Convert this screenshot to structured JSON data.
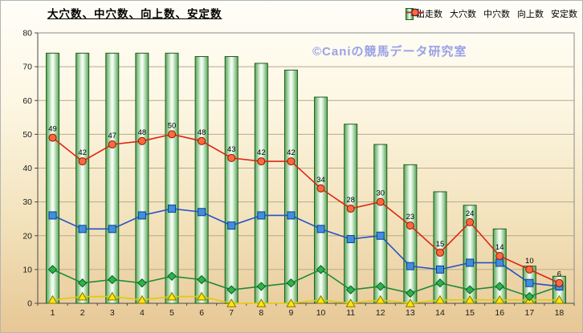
{
  "watermark": "©Caniの競馬データ研究室",
  "chart_data": {
    "type": "combo",
    "title": "大穴数、中穴数、向上数、安定数",
    "categories": [
      "1",
      "2",
      "3",
      "4",
      "5",
      "6",
      "7",
      "8",
      "9",
      "10",
      "11",
      "12",
      "13",
      "14",
      "15",
      "16",
      "17",
      "18"
    ],
    "ylim": [
      0,
      80
    ],
    "ytick_interval": 10,
    "grid": true,
    "legend_position": "top-right",
    "bar_series": {
      "name": "出走数",
      "values": [
        74,
        74,
        74,
        74,
        74,
        73,
        73,
        71,
        69,
        61,
        53,
        47,
        41,
        33,
        29,
        22,
        11,
        8
      ]
    },
    "line_series": [
      {
        "name": "大穴数",
        "marker": "triangle",
        "values": [
          1,
          2,
          2,
          1,
          2,
          2,
          0,
          0,
          0,
          1,
          0,
          1,
          0,
          1,
          1,
          1,
          1,
          1
        ],
        "line_color": "#e0cc00",
        "fill": "#ffe800",
        "stroke": "#877400",
        "labels": false
      },
      {
        "name": "中穴数",
        "marker": "diamond",
        "values": [
          10,
          6,
          7,
          6,
          8,
          7,
          4,
          5,
          6,
          10,
          4,
          5,
          3,
          6,
          4,
          5,
          2,
          5
        ],
        "line_color": "#1f8a3b",
        "fill": "#2eb34a",
        "stroke": "#0b5c22",
        "labels": false
      },
      {
        "name": "向上数",
        "marker": "square",
        "values": [
          26,
          22,
          22,
          26,
          28,
          27,
          23,
          26,
          26,
          22,
          19,
          20,
          11,
          10,
          12,
          12,
          6,
          5
        ],
        "line_color": "#2353c4",
        "fill": "#3f8fdd",
        "stroke": "#123a8f",
        "labels": false
      },
      {
        "name": "安定数",
        "marker": "circle",
        "values": [
          49,
          42,
          47,
          48,
          50,
          48,
          43,
          42,
          42,
          34,
          28,
          30,
          23,
          15,
          24,
          14,
          10,
          6
        ],
        "line_color": "#de2413",
        "fill": "#ff6a3c",
        "stroke": "#8f1400",
        "labels": true
      }
    ],
    "colors": {
      "bar_edge_fill": "#55a455",
      "bar_center_fill": "#f1fdf1",
      "bar_border": "#1c5e1c",
      "grid": "#b9a88e",
      "plot_border": "#8a8a8a",
      "axis": "#4a4a4a",
      "axis_text": "#1a1a1a",
      "data_label": "#000000",
      "watermark": "#98a2e8"
    }
  }
}
